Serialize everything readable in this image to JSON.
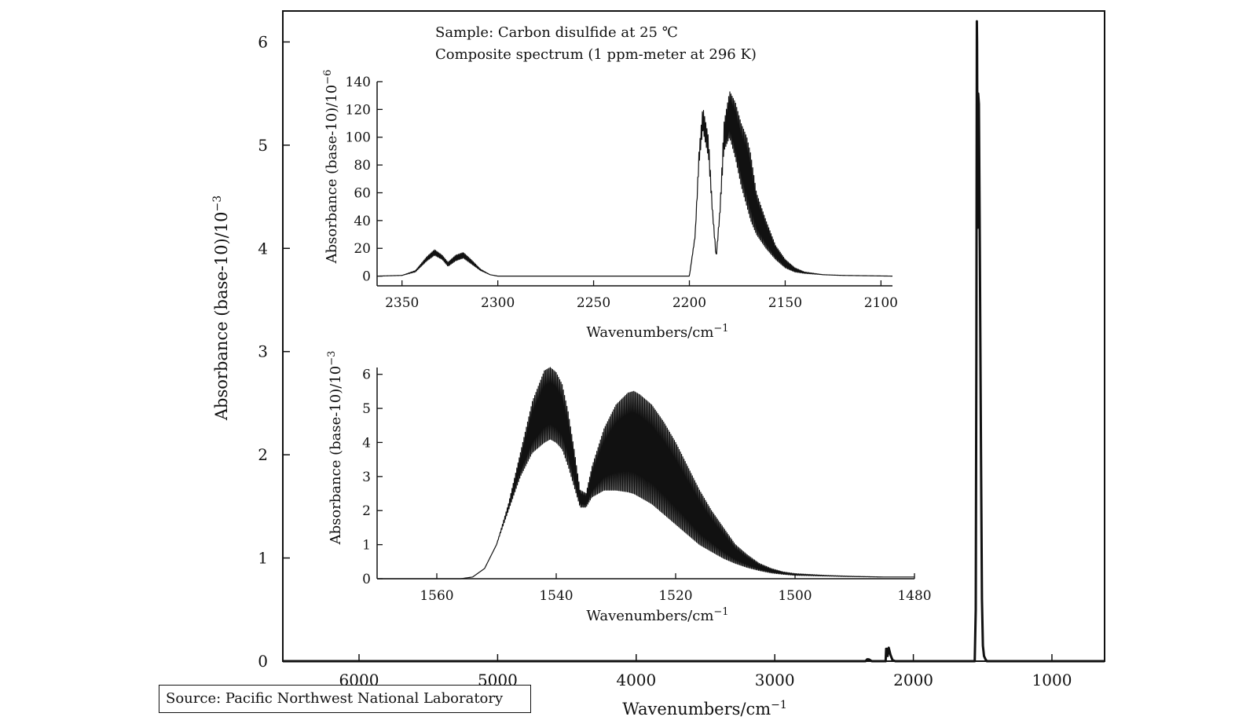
{
  "source_label": "Source: Pacific Northwest National Laboratory",
  "chart_data": [
    {
      "id": "main",
      "type": "line",
      "xlabel": "Wavenumbers/cm",
      "xlabel_sup": "−1",
      "ylabel": "Absorbance (base-10)/10",
      "ylabel_sup": "−3",
      "xlim": [
        6550,
        620
      ],
      "ylim": [
        0,
        6.3
      ],
      "x_ticks": [
        6000,
        5000,
        4000,
        3000,
        2000,
        1000
      ],
      "y_ticks": [
        0,
        1,
        2,
        3,
        4,
        5,
        6
      ],
      "grid": false,
      "series": [
        {
          "points": [
            [
              6550,
              0
            ],
            [
              2360,
              0
            ],
            [
              2345,
              0.0
            ],
            [
              2333,
              0.018
            ],
            [
              2320,
              0.017
            ],
            [
              2300,
              0
            ],
            [
              2200,
              0
            ],
            [
              2196,
              0.12
            ],
            [
              2192,
              0.12
            ],
            [
              2186,
              0.05
            ],
            [
              2178,
              0.13
            ],
            [
              2165,
              0.06
            ],
            [
              2150,
              0.01
            ],
            [
              2130,
              0
            ],
            [
              1565,
              0
            ],
            [
              1557,
              0.0
            ],
            [
              1550,
              0.5
            ],
            [
              1545,
              3.0
            ],
            [
              1542,
              6.2
            ],
            [
              1540,
              6.0
            ],
            [
              1536,
              4.2
            ],
            [
              1532,
              5.5
            ],
            [
              1527,
              5.4
            ],
            [
              1520,
              4.0
            ],
            [
              1512,
              2.0
            ],
            [
              1505,
              0.6
            ],
            [
              1498,
              0.15
            ],
            [
              1490,
              0.05
            ],
            [
              1480,
              0.02
            ],
            [
              1470,
              0
            ],
            [
              620,
              0
            ]
          ]
        }
      ]
    },
    {
      "id": "inset-upper",
      "type": "line",
      "annotations": [
        "Sample: Carbon disulfide at 25 ℃",
        "Composite spectrum (1 ppm-meter at 296 K)"
      ],
      "xlabel": "Wavenumbers/cm",
      "xlabel_sup": "−1",
      "ylabel": "Absorbance (base-10)/10",
      "ylabel_sup": "−6",
      "xlim": [
        2363,
        2094
      ],
      "ylim": [
        -7,
        140
      ],
      "x_ticks": [
        2350,
        2300,
        2250,
        2200,
        2150,
        2100
      ],
      "y_ticks": [
        0,
        20,
        40,
        60,
        80,
        100,
        120,
        140
      ],
      "grid": false,
      "series": [
        {
          "band_upper": [
            [
              2363,
              0
            ],
            [
              2350,
              0.5
            ],
            [
              2343,
              4
            ],
            [
              2337,
              14
            ],
            [
              2333,
              19
            ],
            [
              2329,
              15
            ],
            [
              2326,
              10
            ],
            [
              2322,
              15
            ],
            [
              2318,
              17
            ],
            [
              2314,
              12
            ],
            [
              2309,
              5
            ],
            [
              2304,
              1
            ],
            [
              2300,
              0
            ],
            [
              2200,
              0
            ],
            [
              2197,
              30
            ],
            [
              2195,
              90
            ],
            [
              2193,
              122
            ],
            [
              2190,
              100
            ],
            [
              2188,
              50
            ],
            [
              2186,
              15
            ],
            [
              2184,
              50
            ],
            [
              2182,
              110
            ],
            [
              2179,
              133
            ],
            [
              2176,
              125
            ],
            [
              2173,
              110
            ],
            [
              2170,
              100
            ],
            [
              2168,
              88
            ],
            [
              2165,
              60
            ],
            [
              2160,
              40
            ],
            [
              2155,
              22
            ],
            [
              2150,
              12
            ],
            [
              2145,
              6
            ],
            [
              2140,
              3
            ],
            [
              2130,
              1
            ],
            [
              2120,
              0.5
            ],
            [
              2094,
              0
            ]
          ],
          "band_lower": [
            [
              2363,
              0
            ],
            [
              2350,
              0.5
            ],
            [
              2343,
              3
            ],
            [
              2337,
              11
            ],
            [
              2333,
              15
            ],
            [
              2329,
              12
            ],
            [
              2326,
              7
            ],
            [
              2322,
              11
            ],
            [
              2318,
              13
            ],
            [
              2314,
              9
            ],
            [
              2309,
              4
            ],
            [
              2304,
              1
            ],
            [
              2300,
              0
            ],
            [
              2200,
              0
            ],
            [
              2197,
              28
            ],
            [
              2195,
              80
            ],
            [
              2193,
              105
            ],
            [
              2190,
              85
            ],
            [
              2188,
              45
            ],
            [
              2186,
              12
            ],
            [
              2184,
              45
            ],
            [
              2182,
              90
            ],
            [
              2179,
              100
            ],
            [
              2176,
              85
            ],
            [
              2173,
              65
            ],
            [
              2170,
              50
            ],
            [
              2168,
              40
            ],
            [
              2165,
              30
            ],
            [
              2160,
              20
            ],
            [
              2155,
              12
            ],
            [
              2150,
              6
            ],
            [
              2145,
              3
            ],
            [
              2140,
              2
            ],
            [
              2130,
              1
            ],
            [
              2120,
              0.5
            ],
            [
              2094,
              0
            ]
          ]
        }
      ]
    },
    {
      "id": "inset-lower",
      "type": "line",
      "xlabel": "Wavenumbers/cm",
      "xlabel_sup": "−1",
      "ylabel": "Absorbance (base-10)/10",
      "ylabel_sup": "−3",
      "xlim": [
        1570,
        1480
      ],
      "ylim": [
        0,
        6.2
      ],
      "x_ticks": [
        1560,
        1540,
        1520,
        1500,
        1480
      ],
      "y_ticks": [
        0,
        1,
        2,
        3,
        4,
        5,
        6
      ],
      "grid": false,
      "series": [
        {
          "band_upper": [
            [
              1570,
              0
            ],
            [
              1556,
              0
            ],
            [
              1554,
              0.05
            ],
            [
              1552,
              0.3
            ],
            [
              1550,
              1.0
            ],
            [
              1548,
              2.2
            ],
            [
              1546,
              3.7
            ],
            [
              1544,
              5.2
            ],
            [
              1542,
              6.1
            ],
            [
              1541,
              6.2
            ],
            [
              1540,
              6.05
            ],
            [
              1539,
              5.7
            ],
            [
              1538,
              4.9
            ],
            [
              1537,
              3.8
            ],
            [
              1536,
              2.6
            ],
            [
              1535,
              2.5
            ],
            [
              1534,
              3.3
            ],
            [
              1532,
              4.4
            ],
            [
              1530,
              5.1
            ],
            [
              1528,
              5.45
            ],
            [
              1527,
              5.5
            ],
            [
              1526,
              5.4
            ],
            [
              1524,
              5.1
            ],
            [
              1522,
              4.6
            ],
            [
              1520,
              4.0
            ],
            [
              1518,
              3.3
            ],
            [
              1516,
              2.6
            ],
            [
              1514,
              2.0
            ],
            [
              1512,
              1.5
            ],
            [
              1510,
              1.0
            ],
            [
              1508,
              0.7
            ],
            [
              1506,
              0.45
            ],
            [
              1504,
              0.3
            ],
            [
              1502,
              0.2
            ],
            [
              1500,
              0.15
            ],
            [
              1495,
              0.1
            ],
            [
              1490,
              0.07
            ],
            [
              1485,
              0.05
            ],
            [
              1480,
              0.05
            ]
          ],
          "band_lower": [
            [
              1570,
              0
            ],
            [
              1556,
              0
            ],
            [
              1554,
              0.05
            ],
            [
              1552,
              0.3
            ],
            [
              1550,
              1.0
            ],
            [
              1548,
              2.0
            ],
            [
              1546,
              3.0
            ],
            [
              1544,
              3.7
            ],
            [
              1542,
              4.0
            ],
            [
              1541,
              4.1
            ],
            [
              1540,
              4.0
            ],
            [
              1539,
              3.8
            ],
            [
              1538,
              3.3
            ],
            [
              1537,
              2.7
            ],
            [
              1536,
              2.1
            ],
            [
              1535,
              2.1
            ],
            [
              1534,
              2.4
            ],
            [
              1532,
              2.6
            ],
            [
              1530,
              2.6
            ],
            [
              1528,
              2.55
            ],
            [
              1527,
              2.5
            ],
            [
              1526,
              2.4
            ],
            [
              1524,
              2.2
            ],
            [
              1522,
              1.9
            ],
            [
              1520,
              1.6
            ],
            [
              1518,
              1.3
            ],
            [
              1516,
              1.0
            ],
            [
              1514,
              0.8
            ],
            [
              1512,
              0.6
            ],
            [
              1510,
              0.45
            ],
            [
              1508,
              0.33
            ],
            [
              1506,
              0.24
            ],
            [
              1504,
              0.17
            ],
            [
              1502,
              0.13
            ],
            [
              1500,
              0.1
            ],
            [
              1495,
              0.08
            ],
            [
              1490,
              0.06
            ],
            [
              1485,
              0.05
            ],
            [
              1480,
              0.05
            ]
          ]
        }
      ]
    }
  ]
}
